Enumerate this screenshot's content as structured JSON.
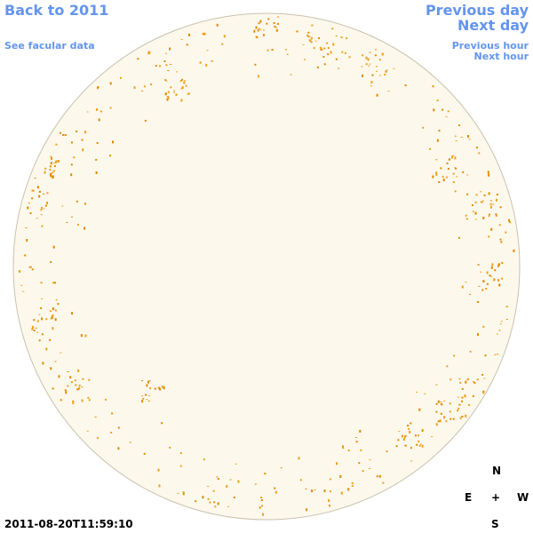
{
  "nav": {
    "back": "Back to 2011",
    "facular": "See facular data",
    "previous_day": "Previous day",
    "next_day": "Next day",
    "previous_hour": "Previous hour",
    "next_hour": "Next hour"
  },
  "compass": {
    "north": "N",
    "east": "E",
    "center": "+",
    "west": "W",
    "south": "S"
  },
  "timestamp": "2011-08-20T11:59:10"
}
